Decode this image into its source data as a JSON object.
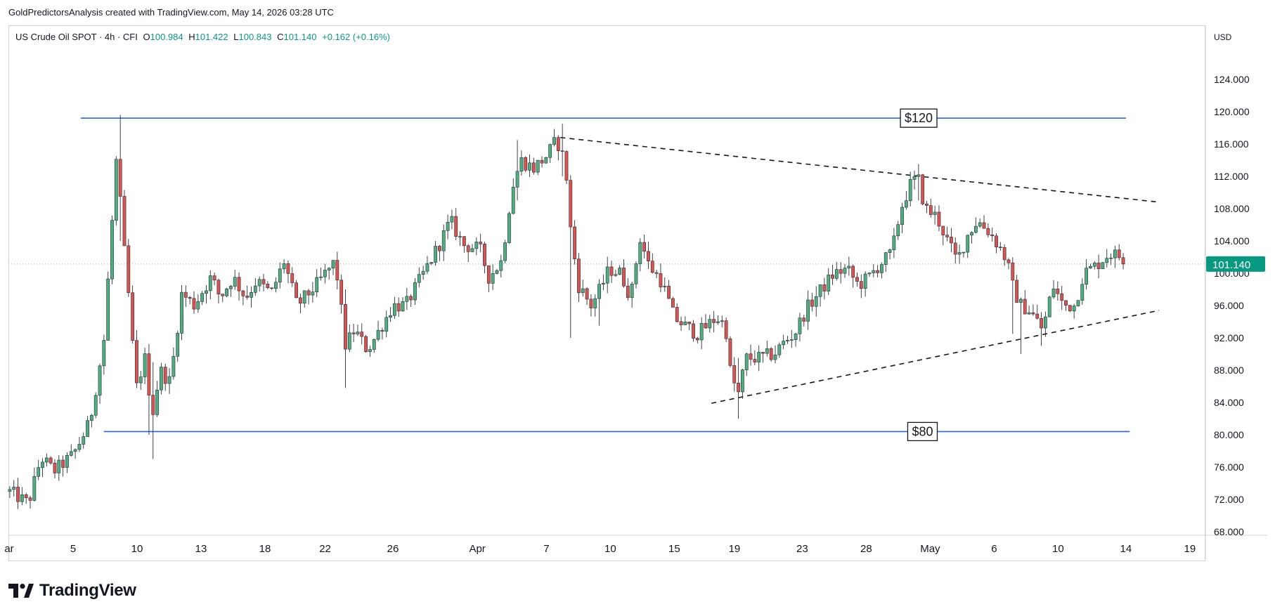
{
  "header": {
    "credit": "GoldPredictorsAnalysis created with TradingView.com, May 14, 2026 03:28 UTC"
  },
  "legend": {
    "symbol": "US Crude Oil SPOT · 4h · CFI",
    "open_label": "O",
    "open": "100.984",
    "high_label": "H",
    "high": "101.422",
    "low_label": "L",
    "low": "100.843",
    "close_label": "C",
    "close": "101.140",
    "change": "+0.162 (+0.16%)"
  },
  "price_axis": {
    "currency": "USD"
  },
  "brand": {
    "name": "TradingView"
  },
  "colors": {
    "up": "#26a69a",
    "up_fill": "#26a69a",
    "down": "#ef5350",
    "candle_up": "#4caf7d",
    "candle_down": "#d9534f",
    "level_line": "#2962ff",
    "last_price": "#089981",
    "grid_text": "#131722"
  },
  "chart_data": {
    "type": "candlestick",
    "interval": "4h",
    "y_ticks": [
      "68.000",
      "72.000",
      "76.000",
      "80.000",
      "84.000",
      "88.000",
      "92.000",
      "96.000",
      "100.000",
      "104.000",
      "108.000",
      "112.000",
      "116.000",
      "120.000",
      "124.000"
    ],
    "y_range": [
      66.4,
      128
    ],
    "x_ticks": [
      {
        "label": "ar",
        "day": 0
      },
      {
        "label": "5",
        "day": 5
      },
      {
        "label": "10",
        "day": 10
      },
      {
        "label": "13",
        "day": 15
      },
      {
        "label": "18",
        "day": 20
      },
      {
        "label": "22",
        "day": 24.7
      },
      {
        "label": "26",
        "day": 30
      },
      {
        "label": "Apr",
        "day": 36.6
      },
      {
        "label": "7",
        "day": 42
      },
      {
        "label": "10",
        "day": 47
      },
      {
        "label": "15",
        "day": 52
      },
      {
        "label": "19",
        "day": 56.7
      },
      {
        "label": "23",
        "day": 62
      },
      {
        "label": "28",
        "day": 67
      },
      {
        "label": "May",
        "day": 72
      },
      {
        "label": "6",
        "day": 77
      },
      {
        "label": "10",
        "day": 82
      },
      {
        "label": "14",
        "day": 87.3
      },
      {
        "label": "19",
        "day": 92.3
      }
    ],
    "last_price": 101.14,
    "last_price_label": "101.140",
    "levels": [
      {
        "label": "$120",
        "price": 119.2,
        "from_day": 5.6,
        "to_day": 87.3,
        "label_day": 71.1
      },
      {
        "label": "$80",
        "price": 80.4,
        "from_day": 7.4,
        "to_day": 87.6,
        "label_day": 71.4
      }
    ],
    "trendlines": [
      {
        "from": {
          "day": 43.1,
          "price": 116.8
        },
        "to": {
          "day": 89.9,
          "price": 108.8
        }
      },
      {
        "from": {
          "day": 54.9,
          "price": 83.9
        },
        "to": {
          "day": 89.9,
          "price": 95.4
        }
      }
    ],
    "anchors": [
      [
        0,
        73.0
      ],
      [
        1.5,
        71.5
      ],
      [
        2.5,
        77.2
      ],
      [
        3.5,
        75.5
      ],
      [
        5,
        77.5
      ],
      [
        6.3,
        81.5
      ],
      [
        7.4,
        91.5
      ],
      [
        8.4,
        114.5
      ],
      [
        8.9,
        104.5
      ],
      [
        9.5,
        94.5
      ],
      [
        9.9,
        85.5
      ],
      [
        10.6,
        89.5
      ],
      [
        11.2,
        82.5
      ],
      [
        11.8,
        88.0
      ],
      [
        12.6,
        86.5
      ],
      [
        13.5,
        97.5
      ],
      [
        14.5,
        96.0
      ],
      [
        15,
        97.5
      ],
      [
        15.8,
        99.5
      ],
      [
        16.5,
        97.0
      ],
      [
        17.5,
        99.5
      ],
      [
        18.5,
        97.0
      ],
      [
        19.3,
        99.0
      ],
      [
        20.5,
        97.5
      ],
      [
        21.5,
        101.5
      ],
      [
        22.5,
        96.0
      ],
      [
        24,
        98.5
      ],
      [
        25,
        100.5
      ],
      [
        25.5,
        101.5
      ],
      [
        26.3,
        91.0
      ],
      [
        27,
        93.0
      ],
      [
        28,
        90.5
      ],
      [
        28.6,
        92.0
      ],
      [
        30,
        96.0
      ],
      [
        31,
        96.0
      ],
      [
        32.4,
        100.0
      ],
      [
        33.6,
        103.5
      ],
      [
        34.5,
        106.5
      ],
      [
        35.5,
        103.5
      ],
      [
        36.8,
        103.0
      ],
      [
        37.5,
        99.5
      ],
      [
        38.5,
        101.5
      ],
      [
        39.3,
        110.5
      ],
      [
        40,
        114.0
      ],
      [
        41,
        113.0
      ],
      [
        42,
        114.5
      ],
      [
        42.8,
        116.5
      ],
      [
        43.5,
        113.5
      ],
      [
        43.8,
        106.5
      ],
      [
        44.5,
        98.5
      ],
      [
        45.5,
        96.0
      ],
      [
        46.2,
        98.0
      ],
      [
        46.9,
        100.5
      ],
      [
        47.8,
        100.0
      ],
      [
        48.6,
        97.0
      ],
      [
        49.3,
        104.5
      ],
      [
        50,
        101.0
      ],
      [
        51,
        99.0
      ],
      [
        52,
        94.5
      ],
      [
        52.8,
        93.5
      ],
      [
        53.8,
        92.5
      ],
      [
        55.3,
        94.5
      ],
      [
        56,
        93.5
      ],
      [
        56.4,
        87.5
      ],
      [
        57,
        85.0
      ],
      [
        57.6,
        89.5
      ],
      [
        58.6,
        89.5
      ],
      [
        59.8,
        90.0
      ],
      [
        60.6,
        91.5
      ],
      [
        61.4,
        92.5
      ],
      [
        62.3,
        95.5
      ],
      [
        63.5,
        98.0
      ],
      [
        64.5,
        100.0
      ],
      [
        65.5,
        100.5
      ],
      [
        66.4,
        98.5
      ],
      [
        67.2,
        99.5
      ],
      [
        68,
        101.0
      ],
      [
        69,
        102.5
      ],
      [
        69.7,
        108.0
      ],
      [
        70.6,
        111.5
      ],
      [
        71.1,
        111.5
      ],
      [
        71.6,
        108.0
      ],
      [
        72.5,
        107.0
      ],
      [
        73.5,
        103.5
      ],
      [
        74.1,
        101.5
      ],
      [
        75,
        105.0
      ],
      [
        75.7,
        106.5
      ],
      [
        76.7,
        105.0
      ],
      [
        77.5,
        103.0
      ],
      [
        78,
        101.5
      ],
      [
        78.5,
        98.0
      ],
      [
        79.1,
        96.0
      ],
      [
        79.7,
        95.5
      ],
      [
        80.2,
        94.5
      ],
      [
        80.8,
        93.0
      ],
      [
        81.6,
        98.5
      ],
      [
        82.4,
        96.0
      ],
      [
        83.3,
        96.0
      ],
      [
        84,
        100.0
      ],
      [
        85,
        101.0
      ],
      [
        86,
        102.5
      ],
      [
        87,
        102.0
      ],
      [
        87.3,
        101.1
      ]
    ],
    "spikes": [
      {
        "day": 8.65,
        "high": 119.6,
        "low": 104.0
      },
      {
        "day": 10.8,
        "low": 80.0,
        "high": 91.0
      },
      {
        "day": 11.2,
        "low": 77.0,
        "high": 89.0
      },
      {
        "day": 25.5,
        "high": 102.5,
        "low": 98.0
      },
      {
        "day": 26.3,
        "low": 85.8,
        "high": 98.0
      },
      {
        "day": 43.1,
        "high": 118.5,
        "low": 112.0
      },
      {
        "day": 44.0,
        "low": 92.0,
        "high": 106.0
      },
      {
        "day": 46.2,
        "low": 93.5,
        "high": 99.0
      },
      {
        "day": 57.0,
        "low": 82.0,
        "high": 89.5
      },
      {
        "day": 78.5,
        "low": 92.5,
        "high": 99.0
      },
      {
        "day": 79.1,
        "low": 90.0,
        "high": 97.0
      },
      {
        "day": 80.8,
        "low": 91.0,
        "high": 94.5
      },
      {
        "day": 71.2,
        "high": 113.5,
        "low": 109.0
      },
      {
        "day": 39.6,
        "high": 116.5,
        "low": 109.0
      }
    ]
  }
}
